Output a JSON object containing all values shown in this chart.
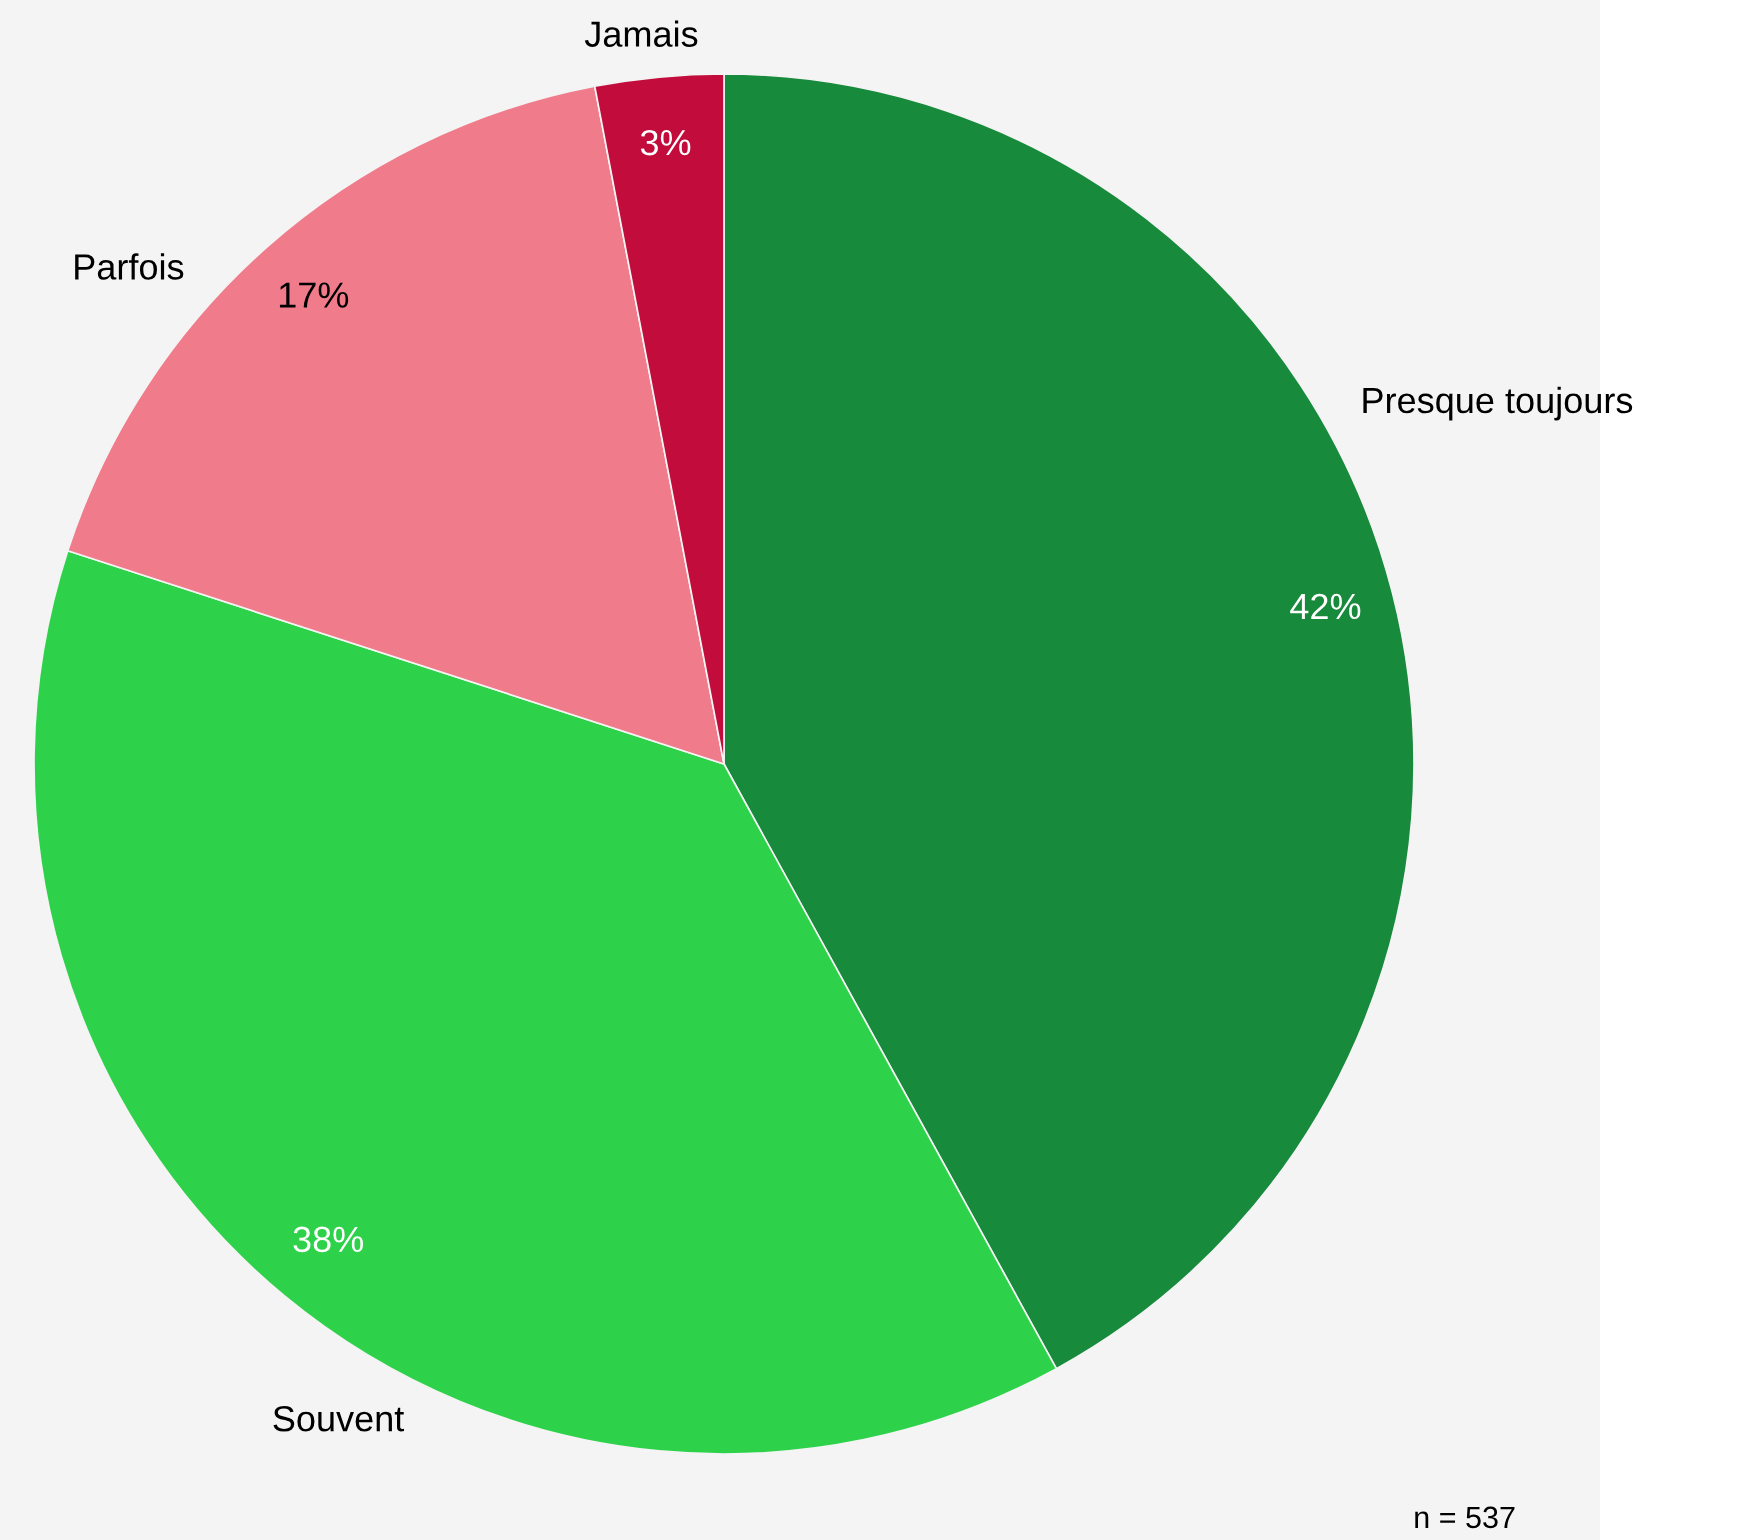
{
  "chart_data": {
    "type": "pie",
    "categories": [
      "Presque toujours",
      "Souvent",
      "Parfois",
      "Jamais"
    ],
    "values": [
      42,
      38,
      17,
      3
    ],
    "colors": [
      "#178a3c",
      "#2ed24a",
      "#f07b8b",
      "#c20d3c"
    ],
    "value_labels": [
      "42%",
      "38%",
      "17%",
      "3%"
    ],
    "annotations": [
      "n = 537"
    ],
    "legend": false
  }
}
